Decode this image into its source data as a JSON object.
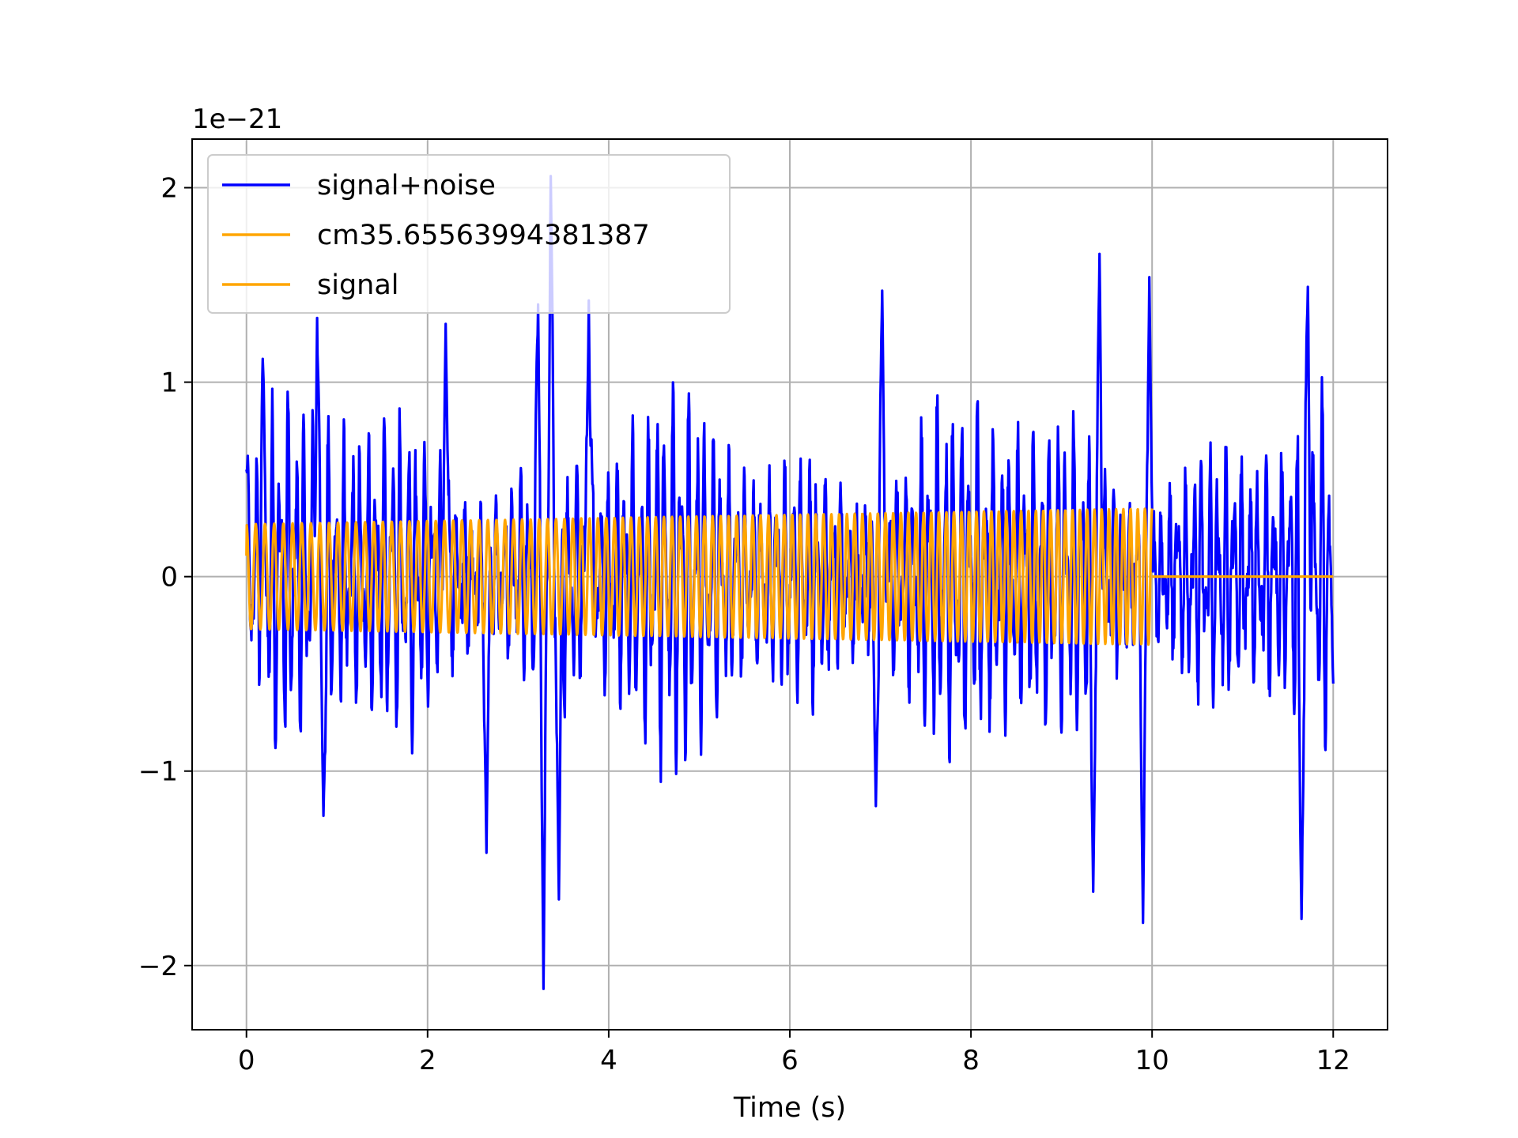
{
  "chart_data": {
    "type": "line",
    "title": "",
    "xlabel": "Time (s)",
    "ylabel": "",
    "offset_label": "1e−21",
    "xlim": [
      -0.6,
      12.6
    ],
    "ylim": [
      -2.33,
      2.25
    ],
    "x_ticks": [
      0,
      2,
      4,
      6,
      8,
      10,
      12
    ],
    "x_tick_labels": [
      "0",
      "2",
      "4",
      "6",
      "8",
      "10",
      "12"
    ],
    "y_ticks": [
      -2,
      -1,
      0,
      1,
      2
    ],
    "y_tick_labels": [
      "−2",
      "−1",
      "0",
      "1",
      "2"
    ],
    "grid": true,
    "legend_position": "top-left",
    "legend_entries": [
      "signal+noise",
      "cm35.65563994381387",
      "signal"
    ],
    "colors": {
      "signal_noise": "#0000ff",
      "signal": "#ffa500",
      "grid": "#b0b0b0"
    },
    "series": [
      {
        "name": "signal+noise",
        "color": "#0000ff",
        "x_range": [
          0,
          12
        ],
        "points_note": "dense noisy oscillation",
        "envelope_peaks": [
          {
            "x": 0.0,
            "y": 0.55
          },
          {
            "x": 0.18,
            "y": 1.12
          },
          {
            "x": 0.78,
            "y": 1.33
          },
          {
            "x": 0.85,
            "y": -1.23
          },
          {
            "x": 2.2,
            "y": 1.3
          },
          {
            "x": 2.65,
            "y": -1.42
          },
          {
            "x": 3.22,
            "y": 1.4
          },
          {
            "x": 3.28,
            "y": -2.12
          },
          {
            "x": 3.36,
            "y": 2.06
          },
          {
            "x": 3.45,
            "y": -1.66
          },
          {
            "x": 3.78,
            "y": 1.42
          },
          {
            "x": 6.95,
            "y": -1.18
          },
          {
            "x": 7.02,
            "y": 1.47
          },
          {
            "x": 9.35,
            "y": -1.62
          },
          {
            "x": 9.42,
            "y": 1.66
          },
          {
            "x": 9.9,
            "y": -1.78
          },
          {
            "x": 9.97,
            "y": 1.54
          },
          {
            "x": 11.65,
            "y": -1.76
          },
          {
            "x": 11.72,
            "y": 1.49
          },
          {
            "x": 12.0,
            "y": -0.55
          }
        ]
      },
      {
        "name": "cm35.65563994381387",
        "color": "#ffa500",
        "x_range": [
          0,
          10
        ],
        "amplitude_start": 0.27,
        "amplitude_end": 0.35,
        "cycles": 112
      },
      {
        "name": "signal",
        "color": "#ffa500",
        "x_range": [
          10,
          12
        ],
        "values": [
          0,
          0
        ]
      }
    ]
  }
}
